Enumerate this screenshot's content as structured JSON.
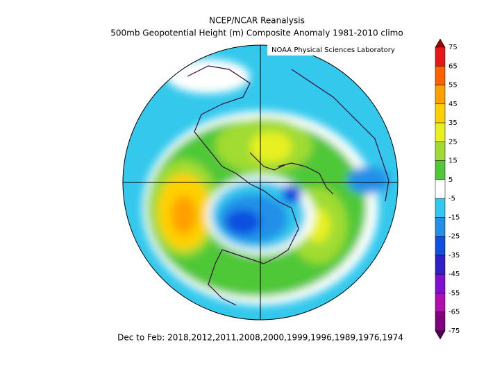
{
  "header": {
    "title": "NCEP/NCAR Reanalysis",
    "subtitle": "500mb Geopotential Height (m) Composite Anomaly 1981-2010 climo"
  },
  "credit": "NOAA Physical Sciences Laboratory",
  "footer": "Dec to Feb: 2018,2012,2011,2008,2000,1999,1996,1989,1976,1974",
  "colorbar": {
    "ticks": [
      75,
      65,
      55,
      45,
      35,
      25,
      15,
      5,
      -5,
      -15,
      -25,
      -35,
      -45,
      -55,
      -65,
      -75
    ],
    "colors": [
      "#a00000",
      "#e81818",
      "#ff6000",
      "#ffa000",
      "#ffd000",
      "#e8f020",
      "#a0dc30",
      "#50c838",
      "#ffffff",
      "#30c8f0",
      "#2090e8",
      "#1050e0",
      "#3020c8",
      "#8010d0",
      "#b010b0",
      "#800080",
      "#500050"
    ]
  }
}
